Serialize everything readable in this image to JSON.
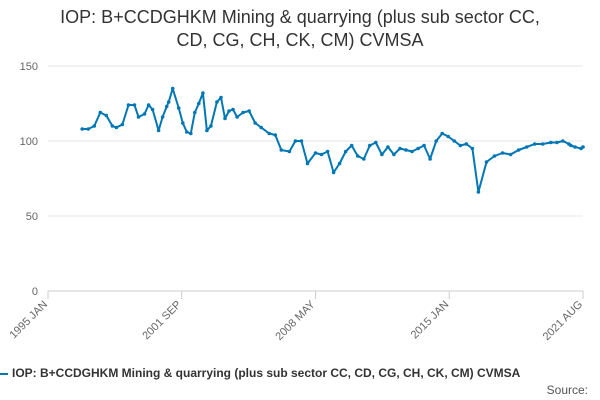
{
  "chart_data": {
    "type": "line",
    "title": "IOP: B+CCDGHKM Mining & quarrying (plus sub sector CC, CD, CG, CH, CK, CM) CVMSA",
    "title_lines": [
      "IOP: B+CCDGHKM Mining & quarrying (plus sub sector CC,",
      "CD, CG, CH, CK, CM) CVMSA"
    ],
    "xlabel": "",
    "ylabel": "",
    "x_ticks": [
      "1995 JAN",
      "2001 SEP",
      "2008 MAY",
      "2015 JAN",
      "2021 AUG"
    ],
    "y_ticks": [
      0,
      50,
      100,
      150
    ],
    "ylim": [
      0,
      150
    ],
    "xlim": [
      1995.0,
      2021.6
    ],
    "grid": "horizontal",
    "legend_position": "bottom",
    "series": [
      {
        "name": "IOP: B+CCDGHKM Mining & quarrying (plus sub sector CC, CD, CG, CH, CK, CM) CVMSA",
        "color": "#0077b5",
        "x": [
          1996.7,
          1997.0,
          1997.3,
          1997.6,
          1997.9,
          1998.2,
          1998.4,
          1998.7,
          1999.0,
          1999.3,
          1999.5,
          1999.8,
          2000.0,
          2000.2,
          2000.5,
          2000.7,
          2000.9,
          2001.0,
          2001.2,
          2001.5,
          2001.7,
          2001.9,
          2002.1,
          2002.3,
          2002.5,
          2002.7,
          2002.9,
          2003.1,
          2003.4,
          2003.6,
          2003.8,
          2004.0,
          2004.2,
          2004.4,
          2004.7,
          2005.0,
          2005.3,
          2005.6,
          2006.0,
          2006.3,
          2006.6,
          2007.0,
          2007.3,
          2007.6,
          2007.9,
          2008.3,
          2008.6,
          2008.9,
          2009.2,
          2009.5,
          2009.8,
          2010.1,
          2010.4,
          2010.7,
          2011.0,
          2011.3,
          2011.6,
          2011.9,
          2012.2,
          2012.5,
          2012.8,
          2013.1,
          2013.4,
          2013.7,
          2014.0,
          2014.3,
          2014.6,
          2014.9,
          2015.2,
          2015.5,
          2015.8,
          2016.1,
          2016.4,
          2016.8,
          2017.2,
          2017.6,
          2018.0,
          2018.4,
          2018.8,
          2019.2,
          2019.6,
          2020.0,
          2020.3,
          2020.6,
          2020.9,
          2021.0,
          2021.2,
          2021.5,
          2021.6
        ],
        "values": [
          108,
          108,
          110,
          119,
          117,
          110,
          109,
          111,
          124,
          124,
          116,
          118,
          124,
          121,
          107,
          116,
          123,
          126,
          135,
          122,
          112,
          106,
          105,
          119,
          125,
          132,
          107,
          110,
          126,
          129,
          115,
          120,
          121,
          116,
          119,
          120,
          112,
          109,
          105,
          104,
          94,
          93,
          100,
          100,
          85,
          92,
          91,
          93,
          79,
          85,
          93,
          97,
          90,
          88,
          97,
          99,
          91,
          96,
          91,
          95,
          94,
          93,
          95,
          97,
          88,
          100,
          105,
          103,
          100,
          97,
          98,
          95,
          66,
          86,
          90,
          92,
          91,
          94,
          96,
          98,
          98,
          99,
          99,
          100,
          98,
          97,
          96,
          95,
          96
        ]
      }
    ]
  },
  "source_label": "Source:"
}
